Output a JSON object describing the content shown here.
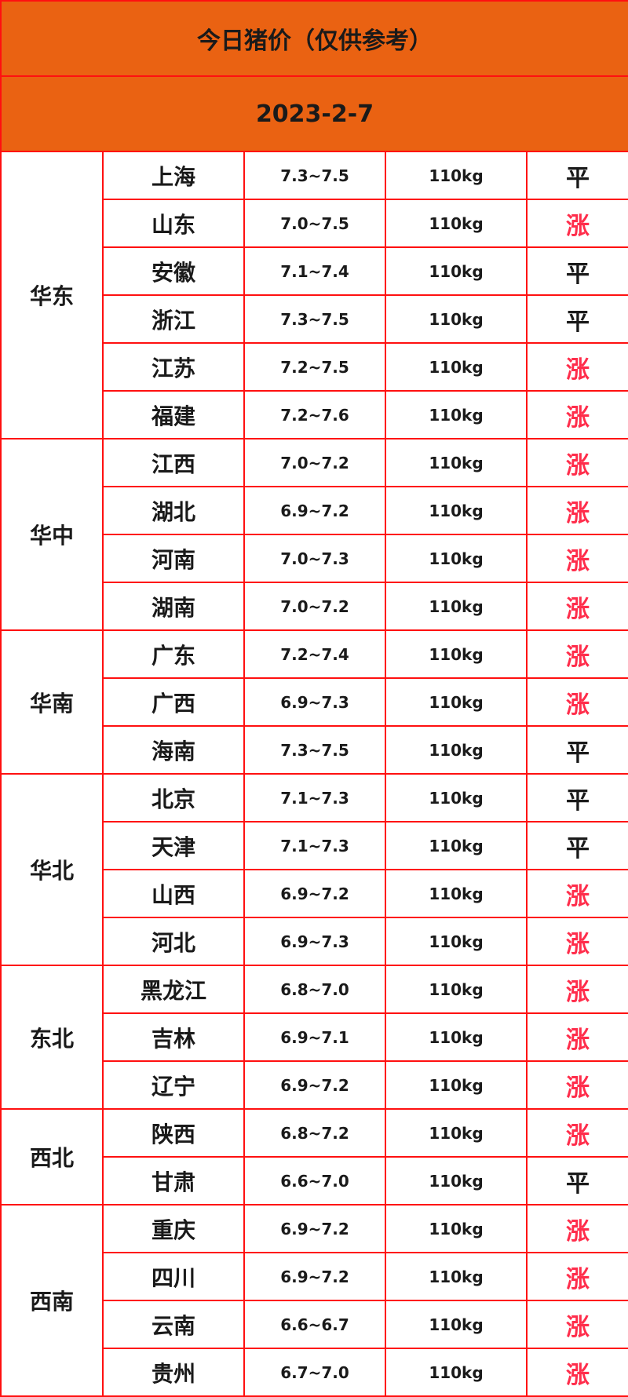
{
  "title": "今日猪价（仅供参考）",
  "date": "2023-2-7",
  "colors": {
    "header_bg": "#ea6212",
    "border": "#ff1010",
    "up": "#ff2d4b",
    "flat": "#1a1a1a"
  },
  "regions": [
    {
      "name": "华东",
      "rows": [
        {
          "province": "上海",
          "price": "7.3~7.5",
          "weight": "110kg",
          "trend": "平"
        },
        {
          "province": "山东",
          "price": "7.0~7.5",
          "weight": "110kg",
          "trend": "涨"
        },
        {
          "province": "安徽",
          "price": "7.1~7.4",
          "weight": "110kg",
          "trend": "平"
        },
        {
          "province": "浙江",
          "price": "7.3~7.5",
          "weight": "110kg",
          "trend": "平"
        },
        {
          "province": "江苏",
          "price": "7.2~7.5",
          "weight": "110kg",
          "trend": "涨"
        },
        {
          "province": "福建",
          "price": "7.2~7.6",
          "weight": "110kg",
          "trend": "涨"
        }
      ]
    },
    {
      "name": "华中",
      "rows": [
        {
          "province": "江西",
          "price": "7.0~7.2",
          "weight": "110kg",
          "trend": "涨"
        },
        {
          "province": "湖北",
          "price": "6.9~7.2",
          "weight": "110kg",
          "trend": "涨"
        },
        {
          "province": "河南",
          "price": "7.0~7.3",
          "weight": "110kg",
          "trend": "涨"
        },
        {
          "province": "湖南",
          "price": "7.0~7.2",
          "weight": "110kg",
          "trend": "涨"
        }
      ]
    },
    {
      "name": "华南",
      "rows": [
        {
          "province": "广东",
          "price": "7.2~7.4",
          "weight": "110kg",
          "trend": "涨"
        },
        {
          "province": "广西",
          "price": "6.9~7.3",
          "weight": "110kg",
          "trend": "涨"
        },
        {
          "province": "海南",
          "price": "7.3~7.5",
          "weight": "110kg",
          "trend": "平"
        }
      ]
    },
    {
      "name": "华北",
      "rows": [
        {
          "province": "北京",
          "price": "7.1~7.3",
          "weight": "110kg",
          "trend": "平"
        },
        {
          "province": "天津",
          "price": "7.1~7.3",
          "weight": "110kg",
          "trend": "平"
        },
        {
          "province": "山西",
          "price": "6.9~7.2",
          "weight": "110kg",
          "trend": "涨"
        },
        {
          "province": "河北",
          "price": "6.9~7.3",
          "weight": "110kg",
          "trend": "涨"
        }
      ]
    },
    {
      "name": "东北",
      "rows": [
        {
          "province": "黑龙江",
          "price": "6.8~7.0",
          "weight": "110kg",
          "trend": "涨"
        },
        {
          "province": "吉林",
          "price": "6.9~7.1",
          "weight": "110kg",
          "trend": "涨"
        },
        {
          "province": "辽宁",
          "price": "6.9~7.2",
          "weight": "110kg",
          "trend": "涨"
        }
      ]
    },
    {
      "name": "西北",
      "rows": [
        {
          "province": "陕西",
          "price": "6.8~7.2",
          "weight": "110kg",
          "trend": "涨"
        },
        {
          "province": "甘肃",
          "price": "6.6~7.0",
          "weight": "110kg",
          "trend": "平"
        }
      ]
    },
    {
      "name": "西南",
      "rows": [
        {
          "province": "重庆",
          "price": "6.9~7.2",
          "weight": "110kg",
          "trend": "涨"
        },
        {
          "province": "四川",
          "price": "6.9~7.2",
          "weight": "110kg",
          "trend": "涨"
        },
        {
          "province": "云南",
          "price": "6.6~6.7",
          "weight": "110kg",
          "trend": "涨"
        },
        {
          "province": "贵州",
          "price": "6.7~7.0",
          "weight": "110kg",
          "trend": "涨"
        }
      ]
    }
  ]
}
